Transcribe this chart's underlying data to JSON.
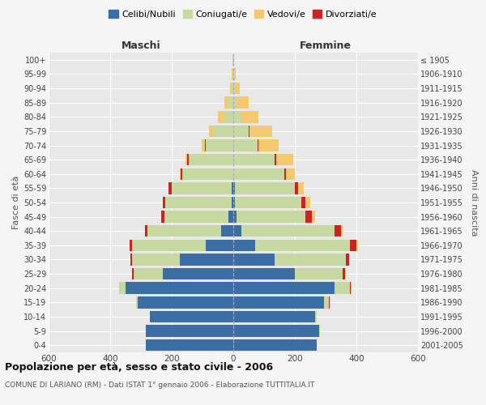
{
  "age_groups": [
    "0-4",
    "5-9",
    "10-14",
    "15-19",
    "20-24",
    "25-29",
    "30-34",
    "35-39",
    "40-44",
    "45-49",
    "50-54",
    "55-59",
    "60-64",
    "65-69",
    "70-74",
    "75-79",
    "80-84",
    "85-89",
    "90-94",
    "95-99",
    "100+"
  ],
  "birth_years": [
    "2001-2005",
    "1996-2000",
    "1991-1995",
    "1986-1990",
    "1981-1985",
    "1976-1980",
    "1971-1975",
    "1966-1970",
    "1961-1965",
    "1956-1960",
    "1951-1955",
    "1946-1950",
    "1941-1945",
    "1936-1940",
    "1931-1935",
    "1926-1930",
    "1921-1925",
    "1916-1920",
    "1911-1915",
    "1906-1910",
    "≤ 1905"
  ],
  "maschi": {
    "celibe": [
      285,
      285,
      270,
      310,
      350,
      230,
      175,
      90,
      40,
      15,
      5,
      5,
      0,
      0,
      0,
      0,
      0,
      0,
      0,
      0,
      0
    ],
    "coniugato": [
      0,
      0,
      2,
      5,
      20,
      95,
      155,
      240,
      240,
      210,
      215,
      195,
      165,
      145,
      90,
      65,
      30,
      15,
      5,
      3,
      2
    ],
    "vedovo": [
      0,
      0,
      0,
      0,
      0,
      0,
      0,
      0,
      0,
      0,
      0,
      0,
      5,
      5,
      10,
      15,
      20,
      15,
      5,
      1,
      0
    ],
    "divorziato": [
      0,
      0,
      0,
      0,
      2,
      5,
      5,
      8,
      8,
      10,
      10,
      10,
      5,
      5,
      2,
      0,
      0,
      0,
      0,
      0,
      0
    ]
  },
  "femmine": {
    "nubile": [
      270,
      280,
      265,
      295,
      330,
      200,
      135,
      70,
      25,
      10,
      5,
      5,
      0,
      0,
      0,
      0,
      0,
      0,
      0,
      0,
      0
    ],
    "coniugata": [
      0,
      2,
      5,
      15,
      50,
      155,
      230,
      310,
      305,
      225,
      215,
      195,
      165,
      135,
      80,
      50,
      25,
      10,
      5,
      2,
      2
    ],
    "vedova": [
      0,
      0,
      0,
      0,
      2,
      2,
      2,
      5,
      5,
      10,
      15,
      20,
      30,
      55,
      65,
      75,
      55,
      40,
      15,
      5,
      1
    ],
    "divorziata": [
      0,
      0,
      0,
      2,
      2,
      8,
      10,
      20,
      20,
      20,
      15,
      10,
      5,
      5,
      2,
      2,
      2,
      0,
      0,
      0,
      0
    ]
  },
  "colors": {
    "celibe": "#3a6ea5",
    "coniugato": "#c5d9a0",
    "vedovo": "#f5c96e",
    "divorziato": "#cc2222"
  },
  "legend_labels": [
    "Celibi/Nubili",
    "Coniugati/e",
    "Vedovi/e",
    "Divorziati/e"
  ],
  "title": "Popolazione per età, sesso e stato civile - 2006",
  "subtitle": "COMUNE DI LARIANO (RM) - Dati ISTAT 1° gennaio 2006 - Elaborazione TUTTITALIA.IT",
  "xlabel_left": "Maschi",
  "xlabel_right": "Femmine",
  "ylabel_left": "Fasce di età",
  "ylabel_right": "Anni di nascita",
  "xlim": 600,
  "bg_color": "#f5f5f5",
  "plot_bg": "#e8e8e8"
}
